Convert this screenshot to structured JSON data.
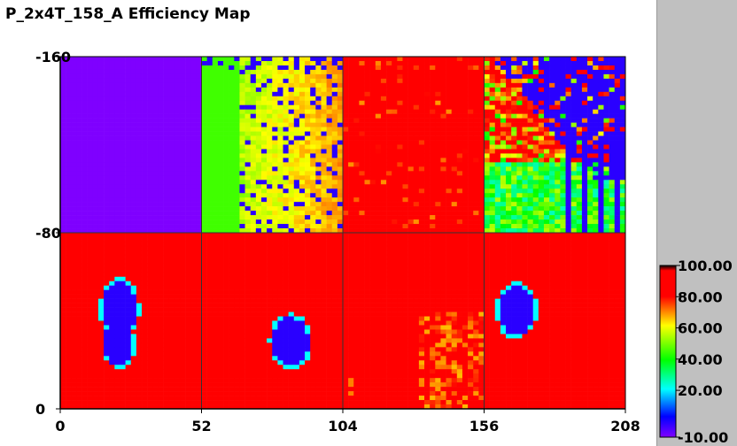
{
  "window": {
    "title": "P_2x4T_158_A Efficiency Map"
  },
  "colors": {
    "background": "#ffffff",
    "side_panel": "#c0c0c0"
  },
  "chart_data": {
    "type": "heatmap",
    "title": "P_2x4T_158_A Efficiency Map",
    "xlabel": "",
    "ylabel": "",
    "xlim": [
      0,
      208
    ],
    "ylim": [
      0,
      160
    ],
    "x_ticks": [
      "0",
      "52",
      "104",
      "156",
      "208"
    ],
    "y_ticks": [
      "0",
      "-80",
      "-160"
    ],
    "grid": "2 rows x 4 columns of sensor tiles",
    "colorbar": {
      "min": -10,
      "max": 100,
      "tick_labels": [
        "100.00",
        "80.00",
        "60.00",
        "40.00",
        "20.00",
        "-10.00"
      ],
      "tick_values": [
        100,
        80,
        60,
        40,
        20,
        -10
      ],
      "colormap": [
        "#7f00ff",
        "#0000ff",
        "#00ffff",
        "#00ff00",
        "#ffff00",
        "#ff0000",
        "#000000"
      ]
    },
    "tiles": [
      {
        "row": "top",
        "x_range": [
          0,
          52
        ],
        "description": "uniform",
        "efficiency": -10
      },
      {
        "row": "top",
        "x_range": [
          52,
          104
        ],
        "description": "green to yellow gradient with scattered dead pixels",
        "efficiency": 55
      },
      {
        "row": "top",
        "x_range": [
          104,
          156
        ],
        "description": "mostly high",
        "efficiency": 100
      },
      {
        "row": "top",
        "x_range": [
          156,
          208
        ],
        "description": "noisy with low-efficiency region in upper right",
        "efficiency": 70
      },
      {
        "row": "bottom",
        "x_range": [
          0,
          52
        ],
        "description": "high with low-efficiency blob",
        "efficiency": 100
      },
      {
        "row": "bottom",
        "x_range": [
          52,
          104
        ],
        "description": "high with low-efficiency blob",
        "efficiency": 100
      },
      {
        "row": "bottom",
        "x_range": [
          104,
          156
        ],
        "description": "high with yellow region lower right",
        "efficiency": 95
      },
      {
        "row": "bottom",
        "x_range": [
          156,
          208
        ],
        "description": "high with low-efficiency blob",
        "efficiency": 100
      }
    ]
  }
}
